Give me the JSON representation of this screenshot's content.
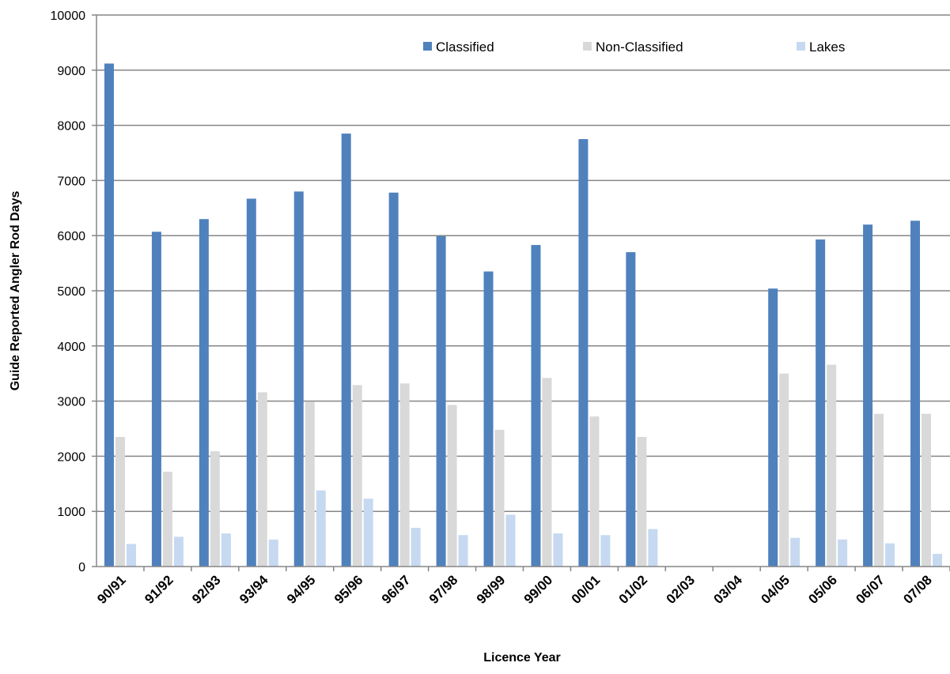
{
  "chart_data": {
    "type": "bar",
    "title": "",
    "xlabel": "Licence Year",
    "ylabel": "Guide Reported  Angler Rod Days",
    "ylim": [
      0,
      10000
    ],
    "yticks": [
      0,
      1000,
      2000,
      3000,
      4000,
      5000,
      6000,
      7000,
      8000,
      9000,
      10000
    ],
    "grid": true,
    "legend_position": "top-right",
    "categories": [
      "90/91",
      "91/92",
      "92/93",
      "93/94",
      "94/95",
      "95/96",
      "96/97",
      "97/98",
      "98/99",
      "99/00",
      "00/01",
      "01/02",
      "02/03",
      "03/04",
      "04/05",
      "05/06",
      "06/07",
      "07/08"
    ],
    "series": [
      {
        "name": "Classified",
        "color": "#4f81bd",
        "values": [
          9120,
          6070,
          6300,
          6670,
          6800,
          7850,
          6780,
          5990,
          5350,
          5830,
          7750,
          5700,
          0,
          0,
          5040,
          5930,
          6200,
          6270
        ]
      },
      {
        "name": "Non-Classified",
        "color": "#d9d9d9",
        "values": [
          2350,
          1720,
          2090,
          3160,
          2990,
          3290,
          3320,
          2930,
          2480,
          3420,
          2720,
          2350,
          0,
          0,
          3500,
          3660,
          2770,
          2770
        ]
      },
      {
        "name": "Lakes",
        "color": "#c6d9f1",
        "values": [
          410,
          540,
          600,
          490,
          1380,
          1230,
          700,
          570,
          940,
          600,
          570,
          680,
          0,
          0,
          520,
          490,
          420,
          230
        ]
      }
    ]
  }
}
